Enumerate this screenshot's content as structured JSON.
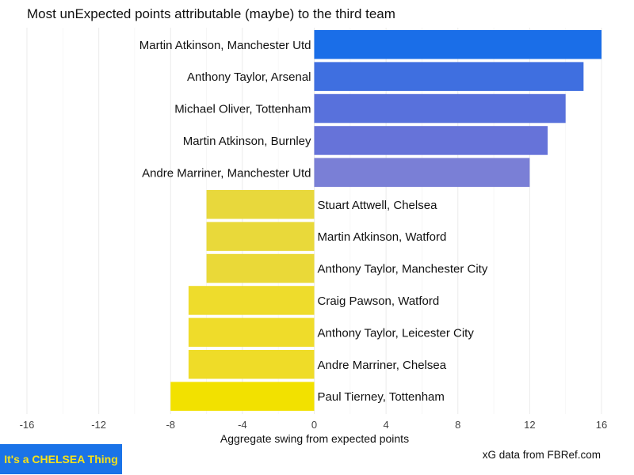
{
  "chart_data": {
    "type": "bar",
    "orientation": "horizontal",
    "title": "Most unExpected points attributable (maybe) to the third team",
    "xlabel": "Aggregate swing from expected points",
    "caption": "xG data from FBRef.com",
    "xlim": [
      -16,
      16
    ],
    "xticks": [
      -16,
      -12,
      -8,
      -4,
      0,
      4,
      8,
      12,
      16
    ],
    "grid": true,
    "categories": [
      "Martin Atkinson, Manchester Utd",
      "Anthony Taylor, Arsenal",
      "Michael Oliver, Tottenham",
      "Martin Atkinson, Burnley",
      "Andre Marriner, Manchester Utd",
      "Stuart Attwell, Chelsea",
      "Martin Atkinson, Watford",
      "Anthony Taylor, Manchester City",
      "Craig Pawson, Watford",
      "Anthony Taylor, Leicester City",
      "Andre Marriner, Chelsea",
      "Paul Tierney, Tottenham"
    ],
    "values": [
      16,
      15,
      14,
      13,
      12,
      -6,
      -6,
      -6,
      -7,
      -7,
      -7,
      -8
    ],
    "colors": [
      "#1a6ee8",
      "#3f6fe0",
      "#5871dc",
      "#6673d9",
      "#7a7fd6",
      "#e8d83c",
      "#e9d93a",
      "#ead938",
      "#eedc2c",
      "#efdc2a",
      "#efdc28",
      "#f2e100"
    ]
  },
  "badge": {
    "text": "It's a CHELSEA Thing"
  }
}
